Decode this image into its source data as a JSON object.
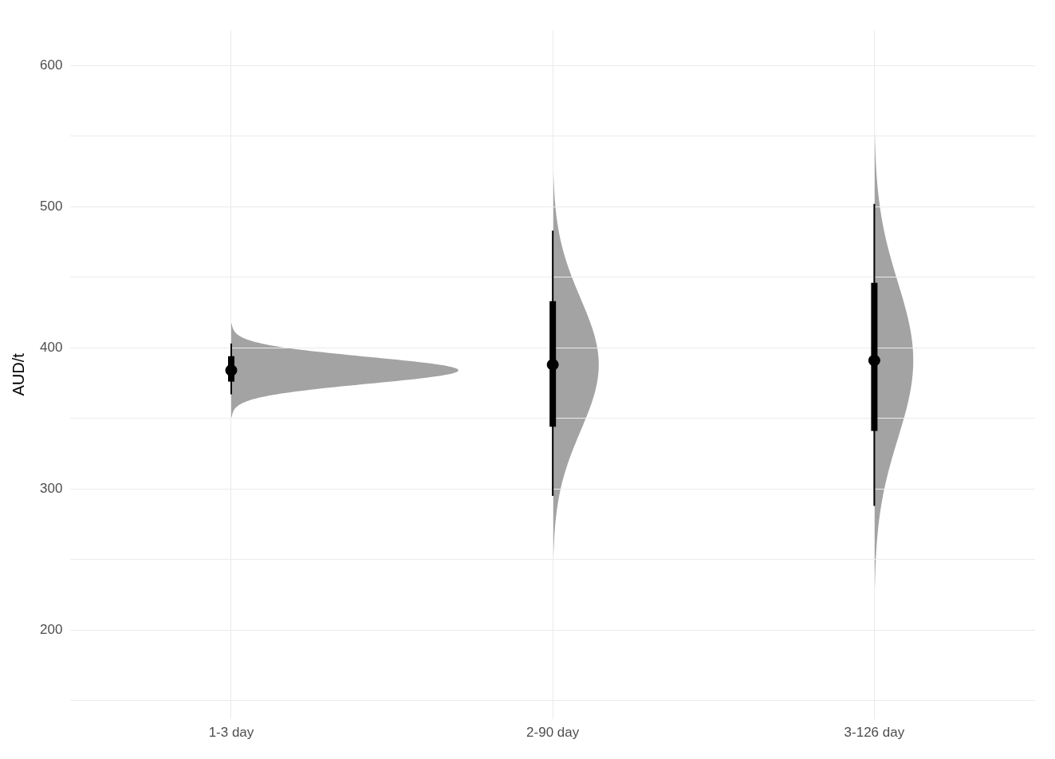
{
  "chart_data": {
    "type": "box",
    "ylabel": "AUD/t",
    "categories": [
      "1-3 day",
      "2-90 day",
      "3-126 day"
    ],
    "color": "#000000",
    "boxes": [
      {
        "low": 367,
        "q1": 376,
        "median": 384,
        "q3": 394,
        "high": 403
      },
      {
        "low": 295,
        "q1": 344,
        "median": 388,
        "q3": 433,
        "high": 483
      },
      {
        "low": 288,
        "q1": 341,
        "median": 391,
        "q3": 446,
        "high": 502
      }
    ],
    "ylim": [
      137,
      625
    ],
    "yticks": [
      {
        "value": 150,
        "label": null
      },
      200,
      {
        "value": 250,
        "label": null
      },
      300,
      {
        "value": 350,
        "label": null
      },
      400,
      {
        "value": 450,
        "label": null
      },
      500,
      {
        "value": 550,
        "label": null
      },
      600
    ],
    "grid": true,
    "legend": false
  }
}
